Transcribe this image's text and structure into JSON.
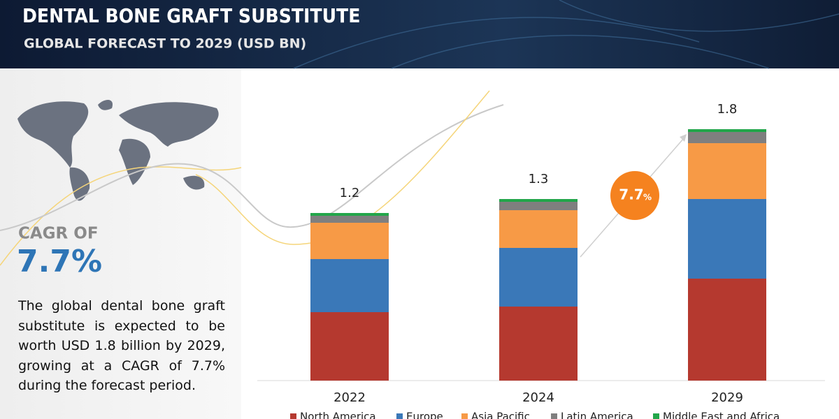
{
  "header": {
    "title": "DENTAL BONE GRAFT SUBSTITUTE",
    "subtitle": "GLOBAL FORECAST TO 2029 (USD BN)"
  },
  "side_panel": {
    "cagr_label": "CAGR OF",
    "cagr_value": "7.7%",
    "text": "The global dental bone graft substitute is expected to be worth USD 1.8 billion by 2029, growing at a CAGR of 7.7% during the forecast period."
  },
  "chart_data": {
    "type": "stacked_bar",
    "categories": [
      "2022",
      "2024",
      "2029"
    ],
    "totals": [
      1.2,
      1.3,
      1.8
    ],
    "annotation": {
      "value": "7.7",
      "unit": "%"
    },
    "series": [
      {
        "name": "North America",
        "color": "#b5392f",
        "values": [
          0.49,
          0.53,
          0.73
        ]
      },
      {
        "name": "Europe",
        "color": "#3a78b8",
        "values": [
          0.38,
          0.42,
          0.57
        ]
      },
      {
        "name": "Asia Pacific",
        "color": "#f79a46",
        "values": [
          0.26,
          0.27,
          0.4
        ]
      },
      {
        "name": "Latin America",
        "color": "#7f7f7f",
        "values": [
          0.05,
          0.06,
          0.08
        ]
      },
      {
        "name": "Middle East and Africa",
        "color": "#22a64a",
        "values": [
          0.02,
          0.02,
          0.02
        ]
      }
    ]
  }
}
